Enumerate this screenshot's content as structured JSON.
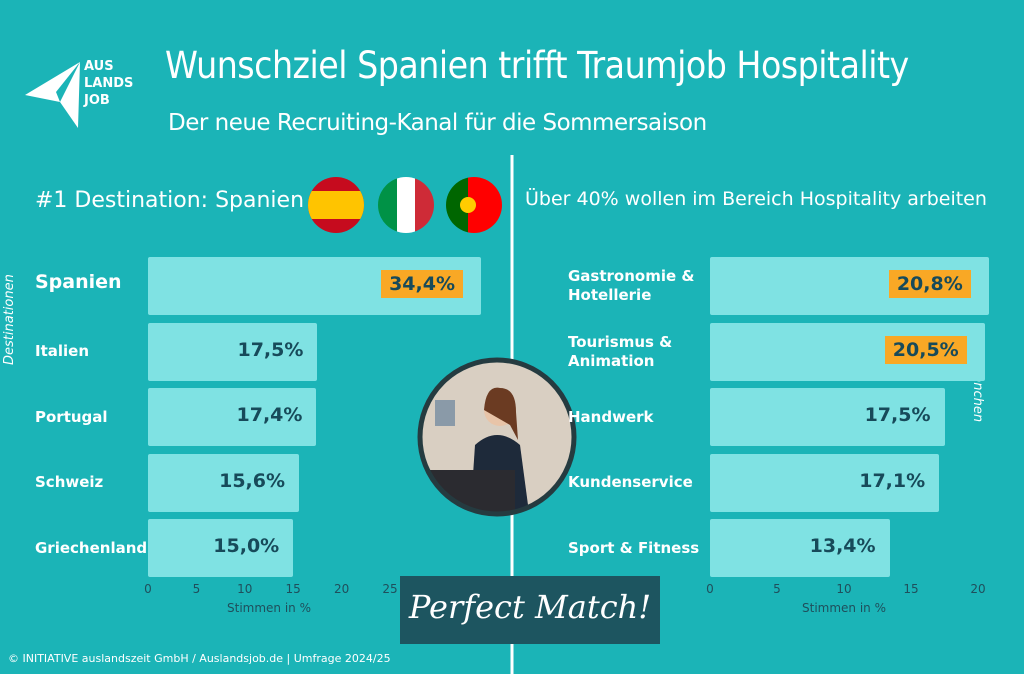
{
  "header": {
    "title": "Wunschziel Spanien trifft Traumjob Hospitality",
    "subtitle": "Der neue Recruiting-Kanal für die Sommersaison",
    "logo": [
      "AUS",
      "LANDS",
      "JOB"
    ]
  },
  "badge": "Perfect Match!",
  "footer": "© INITIATIVE auslandszeit GmbH / Auslandsjob.de | Umfrage 2024/25",
  "chart_data": [
    {
      "type": "bar",
      "orientation": "horizontal",
      "title": "#1 Destination: Spanien",
      "xlabel": "Stimmen in %",
      "ylabel": "Destinationen",
      "categories": [
        "Spanien",
        "Italien",
        "Portugal",
        "Schweiz",
        "Griechenland"
      ],
      "values": [
        34.4,
        17.5,
        17.4,
        15.6,
        15.0
      ],
      "value_labels": [
        "34,4%",
        "17,5%",
        "17,4%",
        "15,6%",
        "15,0%"
      ],
      "color": "#7fe2e3",
      "highlight": [
        0
      ],
      "highlight_color": "#f9a825",
      "xlim": [
        0,
        25
      ],
      "xticks": [
        0,
        5,
        10,
        15,
        20,
        25
      ]
    },
    {
      "type": "bar",
      "orientation": "horizontal",
      "title": "Über 40% wollen im Bereich Hospitality arbeiten",
      "xlabel": "Stimmen in %",
      "ylabel": "Branchen",
      "categories": [
        "Gastronomie & Hotellerie",
        "Tourismus & Animation",
        "Handwerk",
        "Kundenservice",
        "Sport & Fitness"
      ],
      "values": [
        20.8,
        20.5,
        17.5,
        17.1,
        13.4
      ],
      "value_labels": [
        "20,8%",
        "20,5%",
        "17,5%",
        "17,1%",
        "13,4%"
      ],
      "color": "#7fe2e3",
      "highlight": [
        0,
        1
      ],
      "highlight_color": "#f9a825",
      "xlim": [
        0,
        20
      ],
      "xticks": [
        0,
        5,
        10,
        15,
        20
      ]
    }
  ]
}
